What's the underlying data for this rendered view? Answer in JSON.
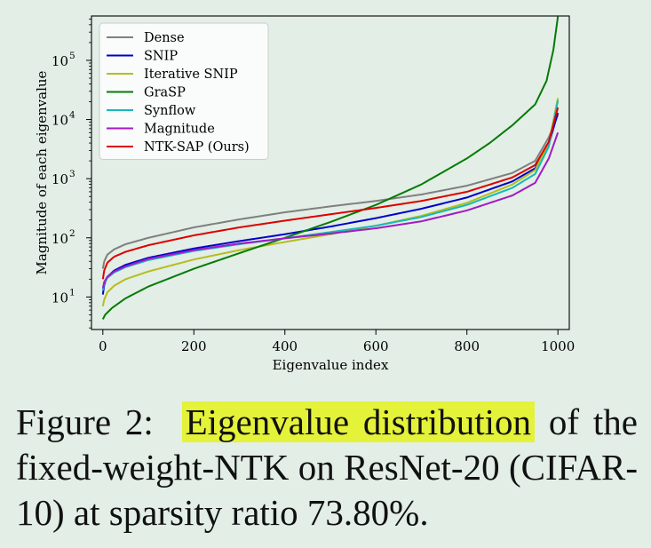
{
  "chart_data": {
    "type": "line",
    "xlabel": "Eigenvalue index",
    "ylabel": "Magnitude of each eigenvalue",
    "x_scale": "linear",
    "y_scale": "log",
    "xlim": [
      -25,
      1025
    ],
    "ylim_exponent": [
      0.45,
      5.75
    ],
    "xticks": [
      0,
      200,
      400,
      600,
      800,
      1000
    ],
    "xtick_labels": [
      "0",
      "200",
      "400",
      "600",
      "800",
      "1000"
    ],
    "yticks_exponent": [
      1,
      2,
      3,
      4,
      5
    ],
    "ytick_labels": [
      "10",
      "10",
      "10",
      "10",
      "10"
    ],
    "ytick_sups": [
      "1",
      "2",
      "3",
      "4",
      "5"
    ],
    "legend_position": "top-left",
    "grid": false,
    "series": [
      {
        "name": "Dense",
        "color": "#7f7f7f",
        "x": [
          0,
          3,
          10,
          25,
          50,
          100,
          200,
          300,
          400,
          500,
          600,
          700,
          800,
          900,
          950,
          980,
          1000
        ],
        "y": [
          30,
          40,
          52,
          64,
          78,
          100,
          150,
          205,
          270,
          340,
          420,
          540,
          760,
          1250,
          2000,
          5000,
          12000
        ]
      },
      {
        "name": "SNIP",
        "color": "#0000cc",
        "x": [
          0,
          3,
          10,
          25,
          50,
          100,
          200,
          300,
          400,
          500,
          600,
          700,
          800,
          900,
          950,
          980,
          1000
        ],
        "y": [
          11,
          16,
          22,
          28,
          35,
          46,
          66,
          88,
          115,
          155,
          215,
          310,
          480,
          900,
          1500,
          3800,
          13000
        ]
      },
      {
        "name": "Iterative SNIP",
        "color": "#b5bd1e",
        "x": [
          0,
          3,
          10,
          25,
          50,
          100,
          200,
          300,
          400,
          500,
          600,
          700,
          800,
          900,
          950,
          980,
          1000
        ],
        "y": [
          7,
          9,
          12,
          15.5,
          20,
          27,
          43,
          62,
          85,
          115,
          160,
          235,
          390,
          800,
          1400,
          4000,
          23000
        ]
      },
      {
        "name": "GraSP",
        "color": "#057a05",
        "x": [
          0,
          5,
          20,
          50,
          100,
          200,
          300,
          400,
          500,
          600,
          700,
          800,
          850,
          900,
          950,
          975,
          990,
          1000
        ],
        "y": [
          4.2,
          5,
          6.5,
          9.5,
          15,
          30,
          55,
          100,
          185,
          360,
          800,
          2200,
          4000,
          8000,
          18000,
          45000,
          150000,
          550000
        ]
      },
      {
        "name": "Synflow",
        "color": "#1ab8b8",
        "x": [
          0,
          3,
          10,
          25,
          50,
          100,
          200,
          300,
          400,
          500,
          600,
          700,
          800,
          900,
          950,
          980,
          1000
        ],
        "y": [
          13,
          17,
          21,
          26,
          32,
          42,
          60,
          78,
          98,
          125,
          160,
          225,
          360,
          700,
          1200,
          3500,
          21000
        ]
      },
      {
        "name": "Magnitude",
        "color": "#a21ac4",
        "x": [
          0,
          3,
          10,
          25,
          50,
          100,
          200,
          300,
          400,
          500,
          600,
          700,
          800,
          900,
          950,
          980,
          1000
        ],
        "y": [
          14,
          18,
          22,
          27,
          33,
          44,
          62,
          80,
          98,
          118,
          145,
          190,
          290,
          520,
          850,
          2200,
          6000
        ]
      },
      {
        "name": "NTK-SAP (Ours)",
        "color": "#dd0000",
        "x": [
          0,
          3,
          10,
          25,
          50,
          100,
          200,
          300,
          400,
          500,
          600,
          700,
          800,
          900,
          950,
          980,
          1000
        ],
        "y": [
          20,
          28,
          38,
          48,
          58,
          75,
          110,
          150,
          195,
          250,
          320,
          420,
          600,
          1050,
          1700,
          4200,
          16000
        ]
      }
    ]
  },
  "caption": {
    "prefix": "Figure 2:",
    "highlight": "Eigenvalue distribution",
    "rest": "of the fixed-weight-NTK on ResNet-20 (CIFAR-10) at sparsity ratio 73.80%."
  }
}
